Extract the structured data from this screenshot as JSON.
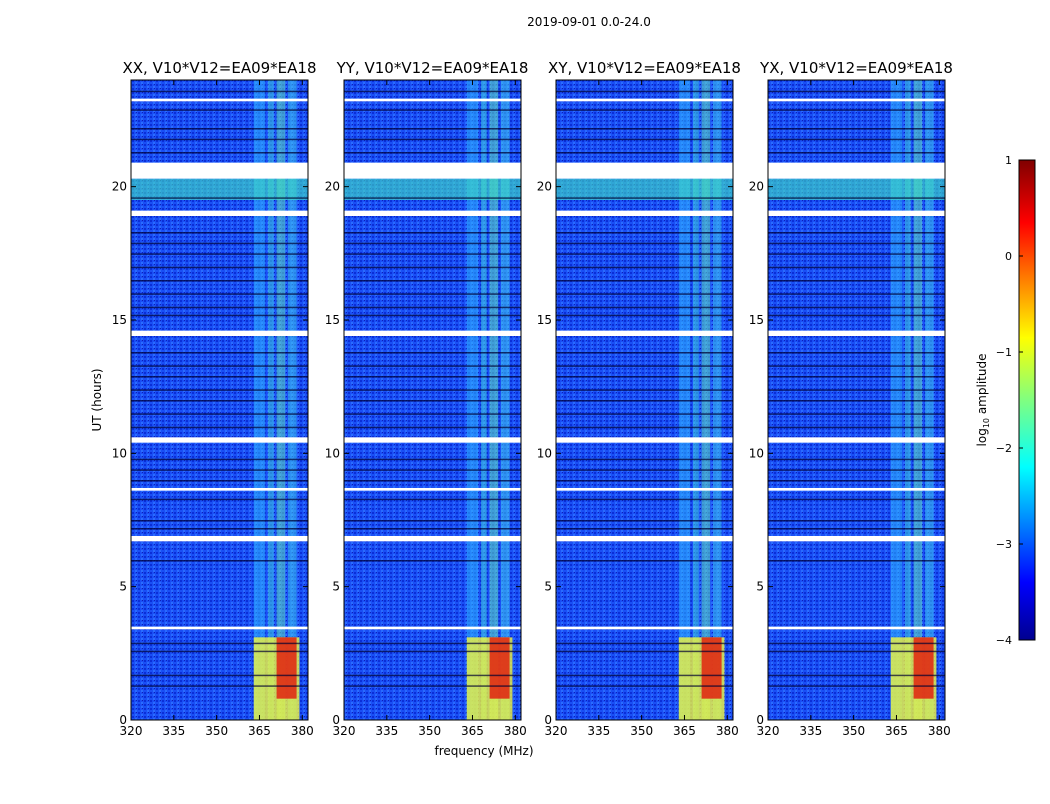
{
  "suptitle": "2019-09-01 0.0-24.0",
  "chart_data": [
    {
      "type": "heatmap",
      "title": "XX, V10*V12=EA09*EA18",
      "xlabel": "frequency (MHz)",
      "ylabel": "UT (hours)",
      "xlim": [
        320,
        382
      ],
      "ylim": [
        0,
        24
      ],
      "xticks": [
        "320",
        "335",
        "350",
        "365",
        "380"
      ],
      "yticks": [
        "0",
        "5",
        "10",
        "15",
        "20"
      ]
    },
    {
      "type": "heatmap",
      "title": "YY, V10*V12=EA09*EA18",
      "xlabel": "frequency (MHz)",
      "ylabel": "UT (hours)",
      "xlim": [
        320,
        382
      ],
      "ylim": [
        0,
        24
      ],
      "xticks": [
        "320",
        "335",
        "350",
        "365",
        "380"
      ],
      "yticks": [
        "0",
        "5",
        "10",
        "15",
        "20"
      ]
    },
    {
      "type": "heatmap",
      "title": "XY, V10*V12=EA09*EA18",
      "xlabel": "frequency (MHz)",
      "ylabel": "UT (hours)",
      "xlim": [
        320,
        382
      ],
      "ylim": [
        0,
        24
      ],
      "xticks": [
        "320",
        "335",
        "350",
        "365",
        "380"
      ],
      "yticks": [
        "0",
        "5",
        "10",
        "15",
        "20"
      ]
    },
    {
      "type": "heatmap",
      "title": "YX, V10*V12=EA09*EA18",
      "xlabel": "frequency (MHz)",
      "ylabel": "UT (hours)",
      "xlim": [
        320,
        382
      ],
      "ylim": [
        0,
        24
      ],
      "xticks": [
        "320",
        "335",
        "350",
        "365",
        "380"
      ],
      "yticks": [
        "0",
        "5",
        "10",
        "15",
        "20"
      ]
    }
  ],
  "shared_xlabel": "frequency (MHz)",
  "shared_ylabel": "UT (hours)",
  "colorbar": {
    "label": "log10 amplitude",
    "range": [
      -4,
      1
    ],
    "ticks": [
      "1",
      "0",
      "−1",
      "−2",
      "−3",
      "−4"
    ],
    "colormap": "jet"
  },
  "colors": {
    "background": "#000080",
    "low": "#1040f0",
    "flagged": "#ffffff"
  }
}
